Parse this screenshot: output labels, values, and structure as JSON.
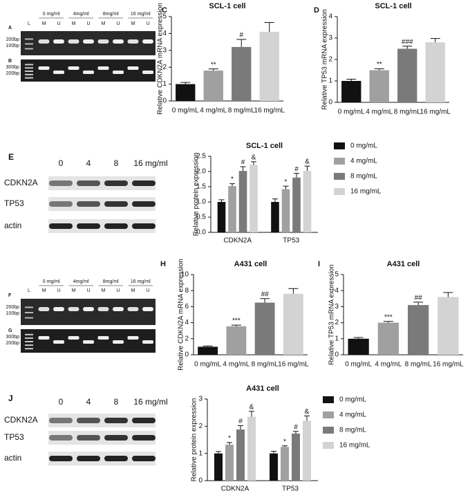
{
  "chart_data": [
    {
      "type": "bar",
      "panel": "C",
      "title": "SCL-1 cell",
      "y_label": "Relative CDKN2A mRNA expression",
      "categories": [
        "0 mg/mL",
        "4 mg/mL",
        "8 mg/mL",
        "16 mg/mL"
      ],
      "values": [
        1.0,
        1.8,
        3.2,
        4.1
      ],
      "errors": [
        0.1,
        0.1,
        0.45,
        0.55
      ],
      "annotations": [
        null,
        "**",
        "#",
        null
      ],
      "colors": [
        "#111111",
        "#a0a0a0",
        "#7a7a7a",
        "#d3d3d3"
      ],
      "ylim": [
        0,
        5
      ],
      "yticks": [
        0,
        1,
        2,
        3,
        4,
        5
      ]
    },
    {
      "type": "bar",
      "panel": "D",
      "title": "SCL-1 cell",
      "y_label": "Relative TP53 mRNA expression",
      "categories": [
        "0 mg/mL",
        "4 mg/mL",
        "8 mg/mL",
        "16 mg/mL"
      ],
      "values": [
        1.0,
        1.5,
        2.5,
        2.8
      ],
      "errors": [
        0.08,
        0.07,
        0.12,
        0.18
      ],
      "annotations": [
        null,
        "**",
        "###",
        null
      ],
      "colors": [
        "#111111",
        "#a0a0a0",
        "#7a7a7a",
        "#d3d3d3"
      ],
      "ylim": [
        0,
        4
      ],
      "yticks": [
        0,
        1,
        2,
        3,
        4
      ]
    },
    {
      "type": "grouped_bar",
      "title": "SCL-1 cell",
      "y_label": "Relative protein expression",
      "categories": [
        "CDKN2A",
        "TP53"
      ],
      "series": [
        {
          "name": "0 mg/mL",
          "color": "#111111",
          "values": [
            1.0,
            1.0
          ],
          "errors": [
            0.07,
            0.1
          ],
          "annotations": [
            null,
            null
          ]
        },
        {
          "name": "4 mg/mL",
          "color": "#a0a0a0",
          "values": [
            1.52,
            1.42
          ],
          "errors": [
            0.08,
            0.1
          ],
          "annotations": [
            "*",
            "*"
          ]
        },
        {
          "name": "8 mg/mL",
          "color": "#7a7a7a",
          "values": [
            2.02,
            1.8
          ],
          "errors": [
            0.14,
            0.14
          ],
          "annotations": [
            "#",
            "#"
          ]
        },
        {
          "name": "16 mg/mL",
          "color": "#d3d3d3",
          "values": [
            2.22,
            2.02
          ],
          "errors": [
            0.1,
            0.16
          ],
          "annotations": [
            "&",
            "&"
          ]
        }
      ],
      "ylim": [
        0,
        2.5
      ],
      "yticks": [
        {
          "value": 0,
          "label": "0.0"
        },
        {
          "value": 0.5,
          "label": "0.5"
        },
        {
          "value": 1,
          "label": "1.0"
        },
        {
          "value": 1.5,
          "label": "1.5"
        },
        {
          "value": 2,
          "label": "2.0"
        },
        {
          "value": 2.5,
          "label": "2.5"
        }
      ]
    },
    {
      "type": "bar",
      "panel": "H",
      "title": "A431 cell",
      "y_label": "Relative CDKN2A mRNA expression",
      "categories": [
        "0 mg/mL",
        "4 mg/mL",
        "8 mg/mL",
        "16 mg/mL"
      ],
      "values": [
        1.0,
        3.55,
        6.5,
        7.6
      ],
      "errors": [
        0.1,
        0.15,
        0.5,
        0.65
      ],
      "annotations": [
        null,
        "***",
        "##",
        null
      ],
      "colors": [
        "#111111",
        "#a0a0a0",
        "#7a7a7a",
        "#d3d3d3"
      ],
      "ylim": [
        0,
        10
      ],
      "yticks": [
        0,
        2,
        4,
        6,
        8,
        10
      ]
    },
    {
      "type": "bar",
      "panel": "I",
      "title": "A431 cell",
      "y_label": "Relative TP53 mRNA expression",
      "categories": [
        "0 mg/mL",
        "4 mg/mL",
        "8 mg/mL",
        "16 mg/mL"
      ],
      "values": [
        1.0,
        2.0,
        3.1,
        3.6
      ],
      "errors": [
        0.08,
        0.08,
        0.18,
        0.28
      ],
      "annotations": [
        null,
        "***",
        "##",
        null
      ],
      "colors": [
        "#111111",
        "#a0a0a0",
        "#7a7a7a",
        "#d3d3d3"
      ],
      "ylim": [
        0,
        5
      ],
      "yticks": [
        0,
        1,
        2,
        3,
        4,
        5
      ]
    },
    {
      "type": "grouped_bar",
      "title": "A431 cell",
      "y_label": "Relative protein expression",
      "categories": [
        "CDKN2A",
        "TP53"
      ],
      "series": [
        {
          "name": "0 mg/mL",
          "color": "#111111",
          "values": [
            1.0,
            1.0
          ],
          "errors": [
            0.07,
            0.08
          ],
          "annotations": [
            null,
            null
          ]
        },
        {
          "name": "4 mg/mL",
          "color": "#a0a0a0",
          "values": [
            1.32,
            1.24
          ],
          "errors": [
            0.08,
            0.04
          ],
          "annotations": [
            "*",
            "*"
          ]
        },
        {
          "name": "8 mg/mL",
          "color": "#7a7a7a",
          "values": [
            1.88,
            1.73
          ],
          "errors": [
            0.14,
            0.08
          ],
          "annotations": [
            "#",
            "#"
          ]
        },
        {
          "name": "16 mg/mL",
          "color": "#d3d3d3",
          "values": [
            2.35,
            2.2
          ],
          "errors": [
            0.2,
            0.18
          ],
          "annotations": [
            "&",
            "&"
          ]
        }
      ],
      "ylim": [
        0,
        3
      ],
      "yticks": [
        0,
        1,
        2,
        3
      ]
    }
  ],
  "gels": [
    {
      "panels": [
        "A",
        "B"
      ],
      "concentrations": [
        "0 mg/ml",
        "4mg/ml",
        "8mg/ml",
        "16 mg/ml"
      ],
      "lanes": [
        "L",
        "M",
        "U",
        "M",
        "U",
        "M",
        "U",
        "M",
        "U"
      ],
      "markers": [
        "200bp",
        "100bp",
        "300bp",
        "200bp"
      ]
    },
    {
      "panels": [
        "F",
        "G"
      ],
      "concentrations": [
        "0 mg/ml",
        "4mg/ml",
        "8mg/ml",
        "16 mg/ml"
      ],
      "lanes": [
        "L",
        "M",
        "U",
        "M",
        "U",
        "M",
        "U",
        "M",
        "U"
      ],
      "markers": [
        "200bp",
        "100bp",
        "300bp",
        "200bp"
      ]
    }
  ],
  "blots": [
    {
      "panel": "E",
      "doses": [
        "0",
        "4",
        "8",
        "16 mg/ml"
      ],
      "proteins": [
        "CDKN2A",
        "TP53",
        "actin"
      ]
    },
    {
      "panel": "J",
      "doses": [
        "0",
        "4",
        "8",
        "16 mg/ml"
      ],
      "proteins": [
        "CDKN2A",
        "TP53",
        "actin"
      ]
    }
  ]
}
